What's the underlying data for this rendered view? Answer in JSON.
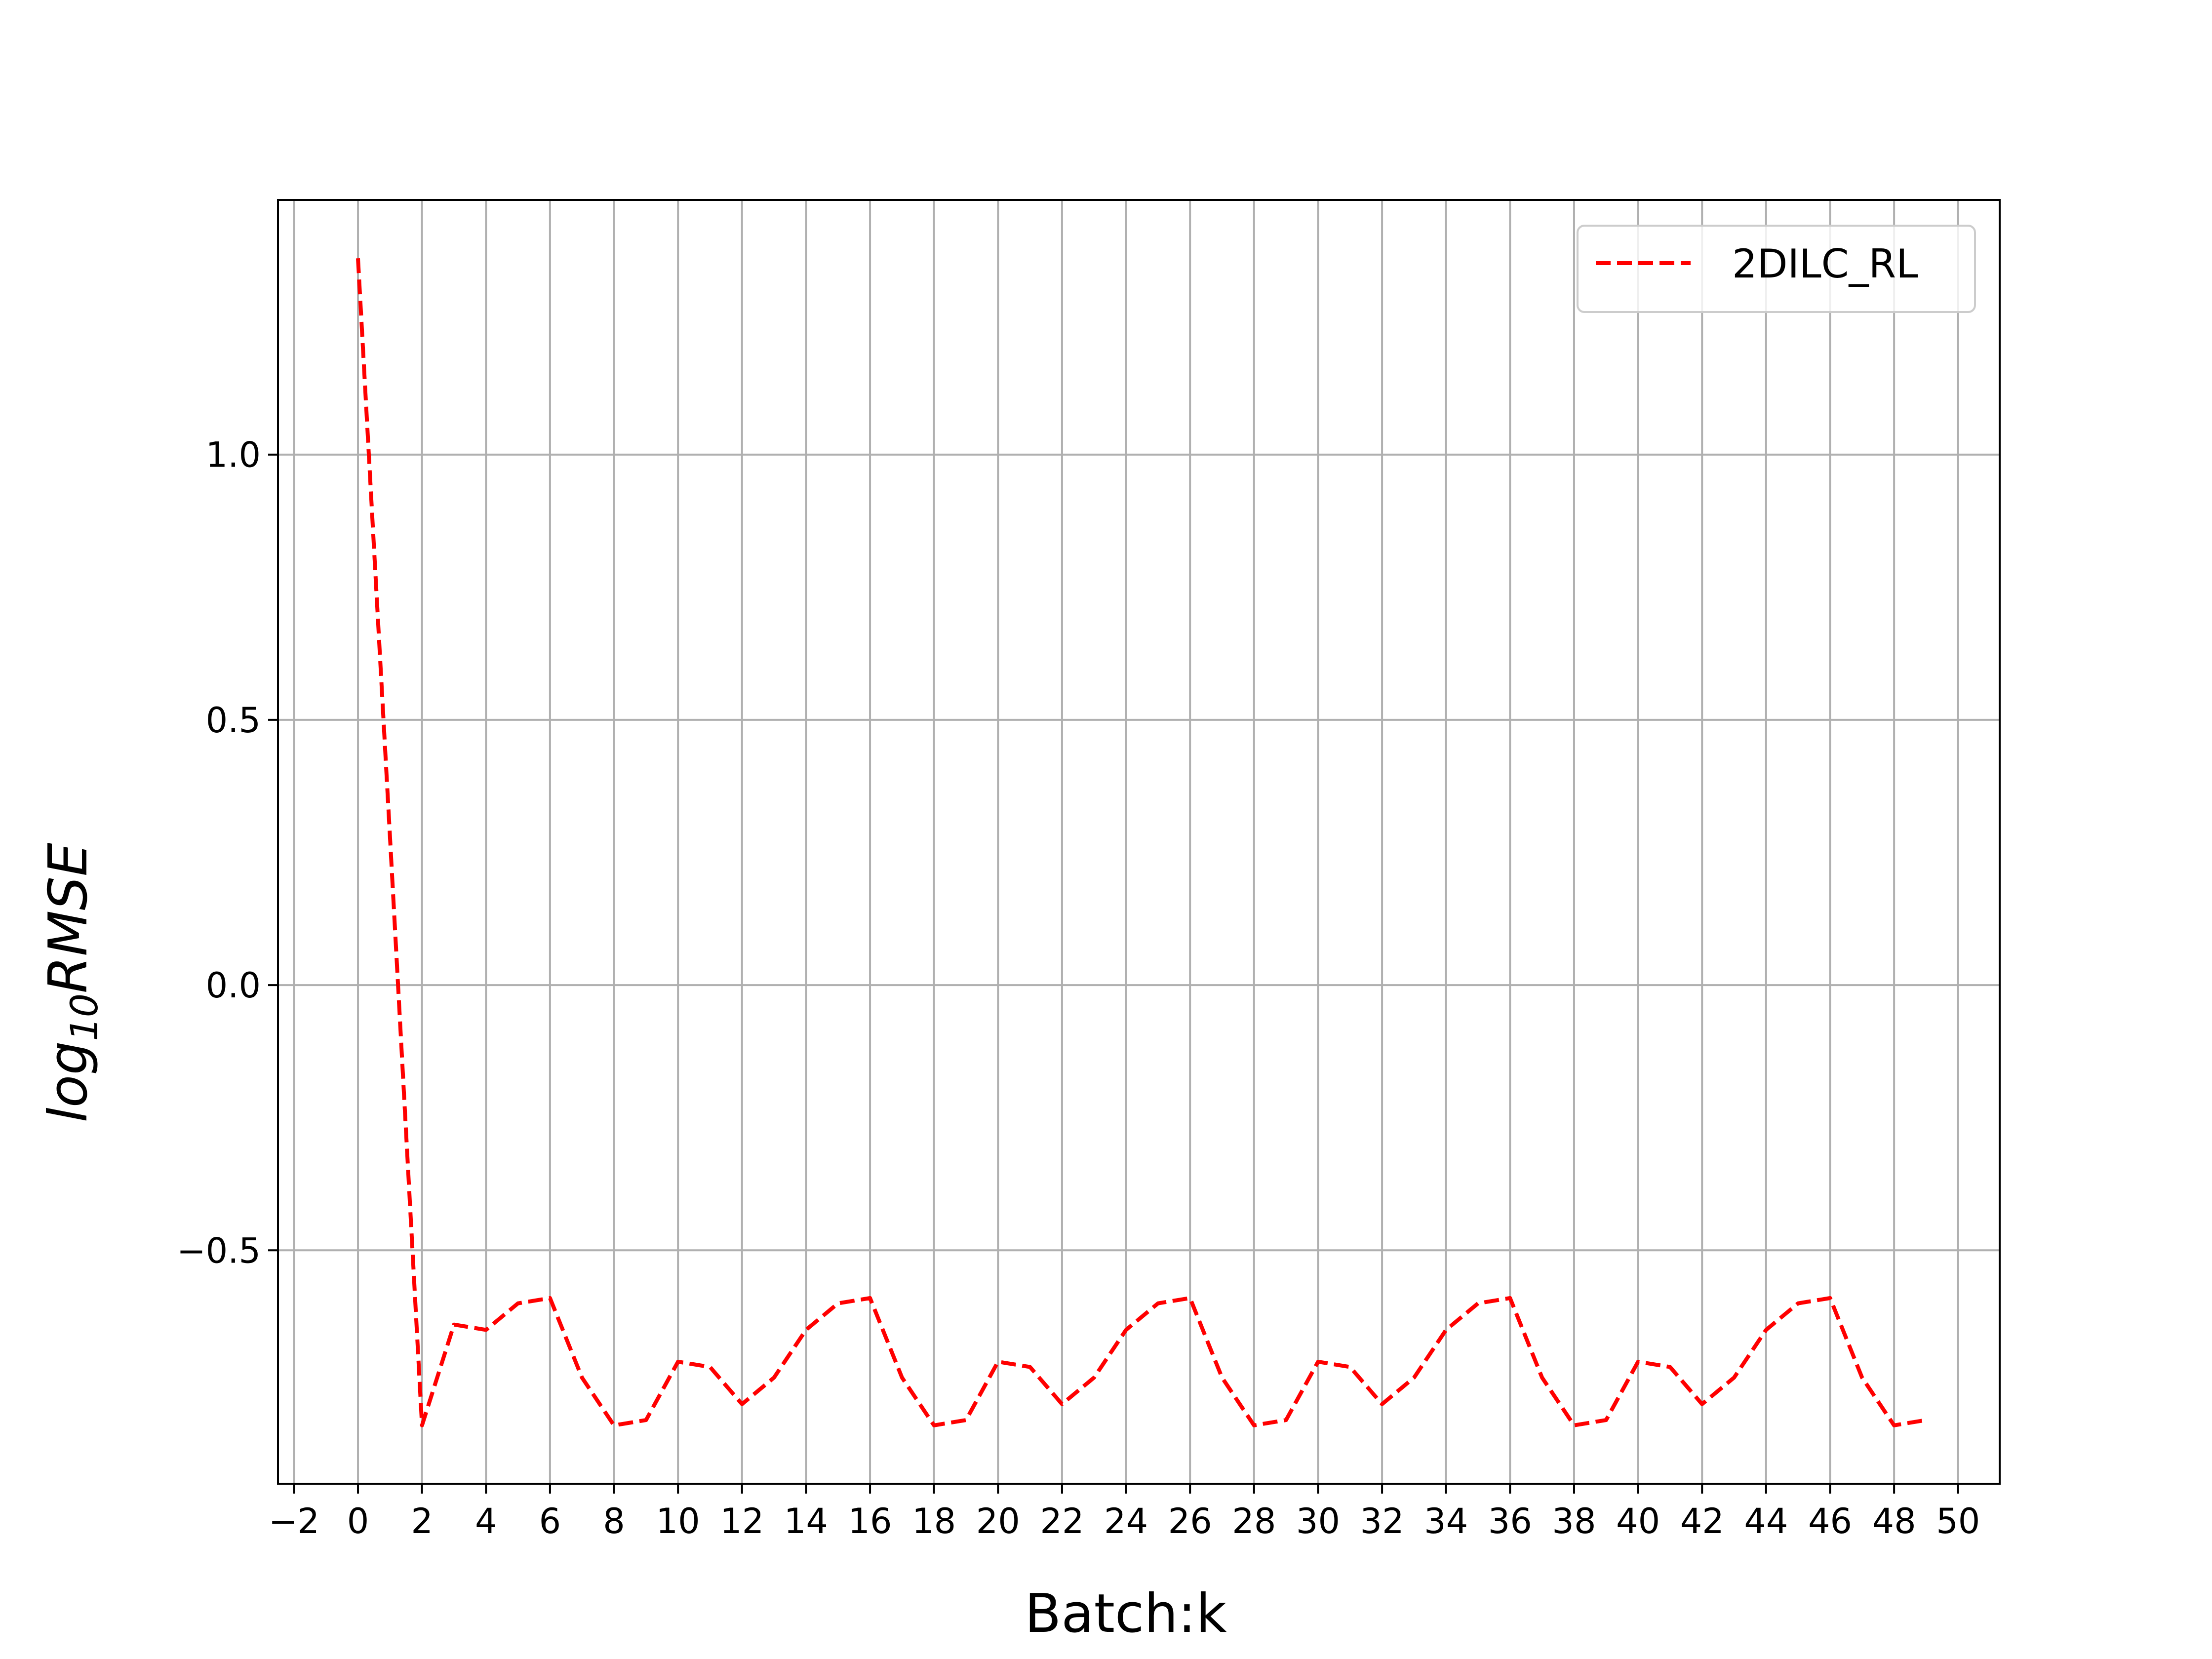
{
  "chart_data": {
    "type": "line",
    "xlabel": "Batch:k",
    "ylabel": {
      "prefix": "log",
      "subscript": "10",
      "suffix": "RMSE"
    },
    "xlim": [
      -2.5,
      51.3
    ],
    "ylim": [
      -0.94,
      1.48
    ],
    "xticks": [
      -2,
      0,
      2,
      4,
      6,
      8,
      10,
      12,
      14,
      16,
      18,
      20,
      22,
      24,
      26,
      28,
      30,
      32,
      34,
      36,
      38,
      40,
      42,
      44,
      46,
      48,
      50
    ],
    "xtick_labels": [
      "−2",
      "0",
      "2",
      "4",
      "6",
      "8",
      "10",
      "12",
      "14",
      "16",
      "18",
      "20",
      "22",
      "24",
      "26",
      "28",
      "30",
      "32",
      "34",
      "36",
      "38",
      "40",
      "42",
      "44",
      "46",
      "48",
      "50"
    ],
    "yticks": [
      -0.5,
      0.0,
      0.5,
      1.0
    ],
    "ytick_labels": [
      "−0.5",
      "0.0",
      "0.5",
      "1.0"
    ],
    "grid": true,
    "legend_position": "upper right",
    "series": [
      {
        "name": "2DILC_RL",
        "color": "#ff0000",
        "line_style": "dashed",
        "x": [
          0,
          1,
          2,
          3,
          4,
          5,
          6,
          7,
          8,
          9,
          10,
          11,
          12,
          13,
          14,
          15,
          16,
          17,
          18,
          19,
          20,
          21,
          22,
          23,
          24,
          25,
          26,
          27,
          28,
          29,
          30,
          31,
          32,
          33,
          34,
          35,
          36,
          37,
          38,
          39,
          40,
          41,
          42,
          43,
          44,
          45,
          46,
          47,
          48,
          49
        ],
        "y": [
          1.37,
          0.28,
          -0.83,
          -0.64,
          -0.65,
          -0.6,
          -0.59,
          -0.74,
          -0.83,
          -0.82,
          -0.71,
          -0.72,
          -0.79,
          -0.74,
          -0.65,
          -0.6,
          -0.59,
          -0.74,
          -0.83,
          -0.82,
          -0.71,
          -0.72,
          -0.79,
          -0.74,
          -0.65,
          -0.6,
          -0.59,
          -0.74,
          -0.83,
          -0.82,
          -0.71,
          -0.72,
          -0.79,
          -0.74,
          -0.65,
          -0.6,
          -0.59,
          -0.74,
          -0.83,
          -0.82,
          -0.71,
          -0.72,
          -0.79,
          -0.74,
          -0.65,
          -0.6,
          -0.59,
          -0.74,
          -0.83,
          -0.82
        ]
      }
    ]
  }
}
